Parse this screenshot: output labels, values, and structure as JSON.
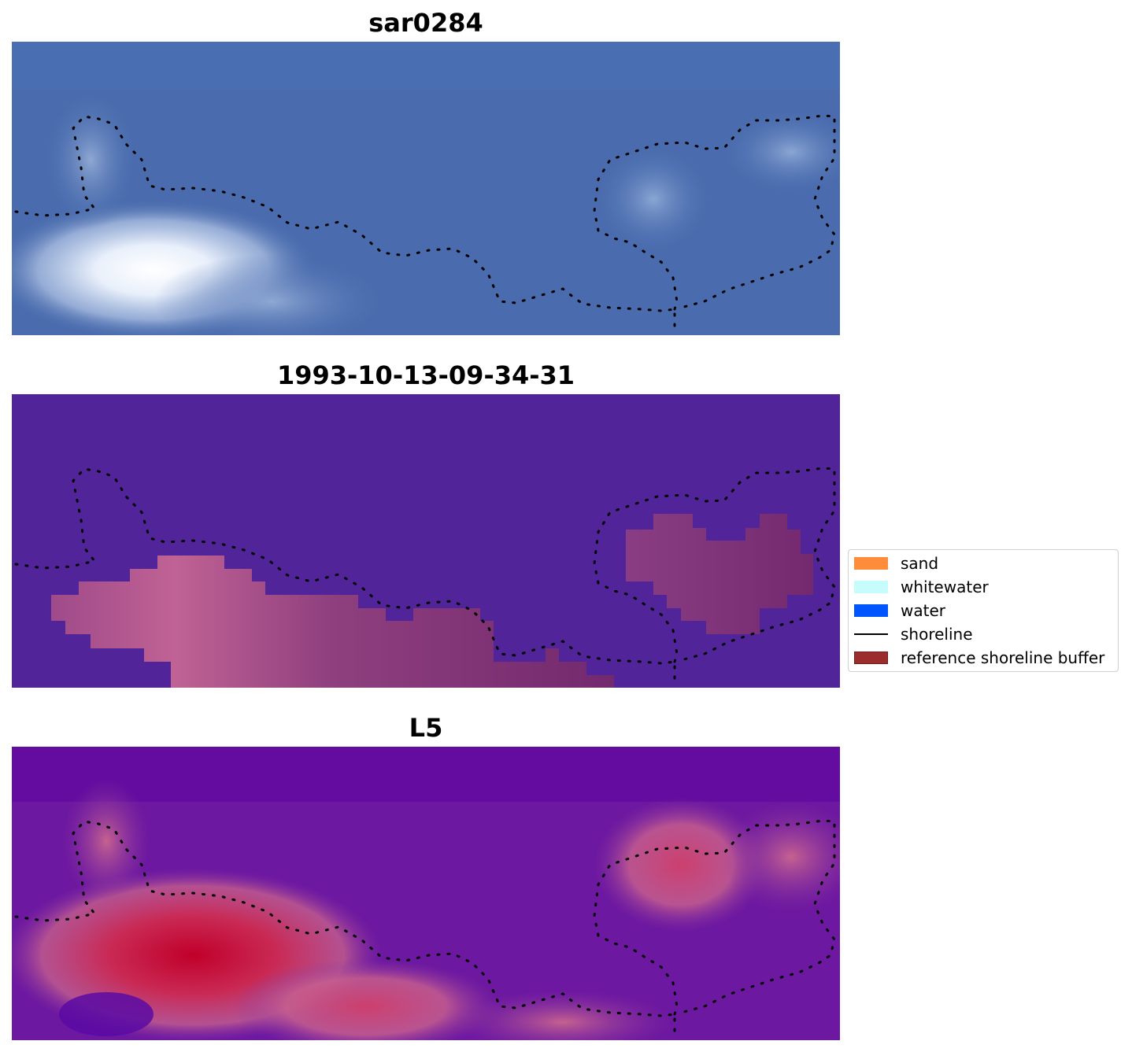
{
  "panels": [
    {
      "title": "sar0284",
      "kind": "rgb"
    },
    {
      "title": "1993-10-13-09-34-31",
      "kind": "classification"
    },
    {
      "title": "L5",
      "kind": "index"
    }
  ],
  "legend": {
    "items": [
      {
        "label": "sand",
        "color": "#ff8c3a",
        "type": "patch"
      },
      {
        "label": "whitewater",
        "color": "#c6fcfc",
        "type": "patch"
      },
      {
        "label": "water",
        "color": "#0055ff",
        "type": "patch"
      },
      {
        "label": "shoreline",
        "color": "#000000",
        "type": "line"
      },
      {
        "label": "reference shoreline buffer",
        "color": "#9b2d2d",
        "type": "patch"
      }
    ]
  },
  "colors": {
    "rgb_base": "#4a6cae",
    "class_background": "#52249a",
    "buffer_overlay": "#a83d6f",
    "index_low": "#58009e",
    "index_high": "#c0002a"
  }
}
